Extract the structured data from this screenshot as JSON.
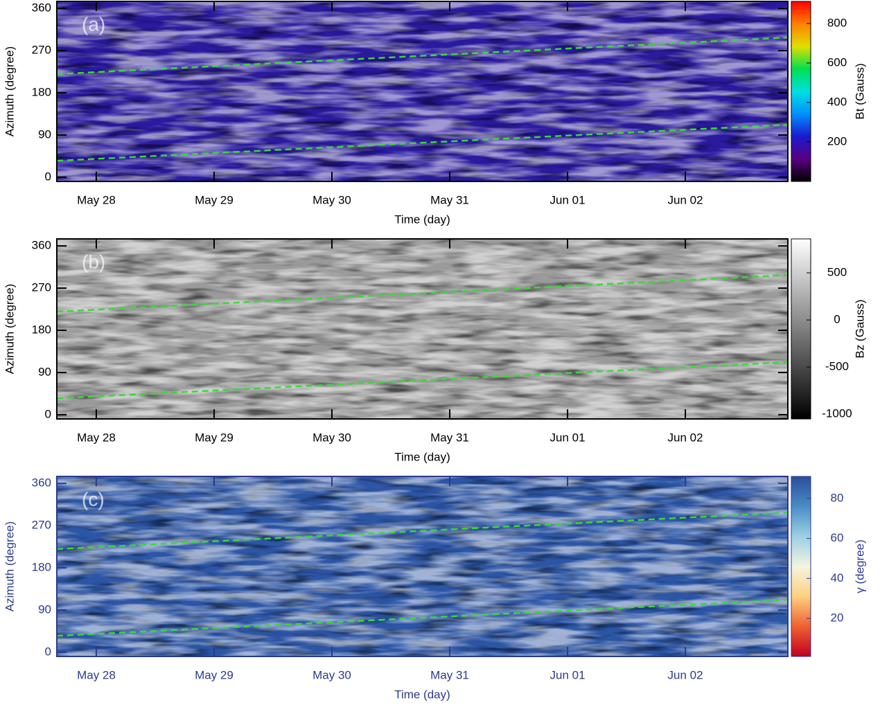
{
  "chart_data": [
    {
      "type": "heatmap",
      "title": "(a)",
      "xlabel": "Time (day)",
      "ylabel": "Azimuth (degree)",
      "xlim": [
        27.665,
        33.87
      ],
      "xticks": [
        {
          "value": 28,
          "label": "May 28"
        },
        {
          "value": 29,
          "label": "May 29"
        },
        {
          "value": 30,
          "label": "May 30"
        },
        {
          "value": 31,
          "label": "May 31"
        },
        {
          "value": 32,
          "label": "Jun 01"
        },
        {
          "value": 33,
          "label": "Jun 02"
        }
      ],
      "ylim": [
        -9,
        375
      ],
      "yticks": [
        0,
        90,
        180,
        270,
        360
      ],
      "axis_color": "#000000",
      "map_colors": [
        "#2a1a9e",
        "#1a3be0",
        "#38c8f0"
      ],
      "colorbar_label": "Bt (Gauss)",
      "clim": [
        0,
        912
      ],
      "cticks": [
        200,
        400,
        600,
        800
      ],
      "colors": [
        "#000000",
        "#5a0080",
        "#1a1ad0",
        "#0090ff",
        "#00e0e0",
        "#00e050",
        "#e0e000",
        "#ff8000",
        "#ff0000"
      ],
      "series": [
        {
          "color": "#33dd33",
          "x": [
            27.665,
            33.87
          ],
          "values": [
            220,
            298
          ]
        },
        {
          "color": "#33dd33",
          "x": [
            27.665,
            33.87
          ],
          "values": [
            35,
            112
          ]
        }
      ]
    },
    {
      "type": "heatmap",
      "title": "(b)",
      "xlabel": "Time (day)",
      "ylabel": "Azimuth (degree)",
      "xlim": [
        27.665,
        33.87
      ],
      "xticks": [
        {
          "value": 28,
          "label": "May 28"
        },
        {
          "value": 29,
          "label": "May 29"
        },
        {
          "value": 30,
          "label": "May 30"
        },
        {
          "value": 31,
          "label": "May 31"
        },
        {
          "value": 32,
          "label": "Jun 01"
        },
        {
          "value": 33,
          "label": "Jun 02"
        }
      ],
      "ylim": [
        -9,
        375
      ],
      "yticks": [
        0,
        90,
        180,
        270,
        360
      ],
      "axis_color": "#000000",
      "map_colors": [
        "#9a9a9a",
        "#555555",
        "#d8d8d8"
      ],
      "colorbar_label": "Bz (Gauss)",
      "clim": [
        -1050,
        860
      ],
      "cticks": [
        500,
        0,
        -500,
        -1000
      ],
      "colors": [
        "#000000",
        "#ffffff"
      ],
      "series": [
        {
          "color": "#33dd33",
          "x": [
            27.665,
            33.87
          ],
          "values": [
            220,
            298
          ]
        },
        {
          "color": "#33dd33",
          "x": [
            27.665,
            33.87
          ],
          "values": [
            35,
            112
          ]
        }
      ]
    },
    {
      "type": "heatmap",
      "title": "(c)",
      "xlabel": "Time (day)",
      "ylabel": "Azimuth (degree)",
      "xlim": [
        27.665,
        33.87
      ],
      "xticks": [
        {
          "value": 28,
          "label": "May 28"
        },
        {
          "value": 29,
          "label": "May 29"
        },
        {
          "value": 30,
          "label": "May 30"
        },
        {
          "value": 31,
          "label": "May 31"
        },
        {
          "value": 32,
          "label": "Jun 01"
        },
        {
          "value": 33,
          "label": "Jun 02"
        }
      ],
      "ylim": [
        -9,
        375
      ],
      "yticks": [
        0,
        90,
        180,
        270,
        360
      ],
      "axis_color": "#2b3a8c",
      "map_colors": [
        "#2c55a5",
        "#1e3c8c",
        "#e8f0f4"
      ],
      "colorbar_label": "γ (degree)",
      "clim": [
        1,
        91
      ],
      "cticks": [
        20,
        40,
        60,
        80
      ],
      "colors": [
        "#c00020",
        "#f06030",
        "#fdd080",
        "#f4f4e0",
        "#9cd0e4",
        "#4a8cc4",
        "#2c4c9c"
      ],
      "series": [
        {
          "color": "#33dd33",
          "x": [
            27.665,
            33.87
          ],
          "values": [
            220,
            298
          ]
        },
        {
          "color": "#33dd33",
          "x": [
            27.665,
            33.87
          ],
          "values": [
            35,
            112
          ]
        }
      ]
    }
  ]
}
